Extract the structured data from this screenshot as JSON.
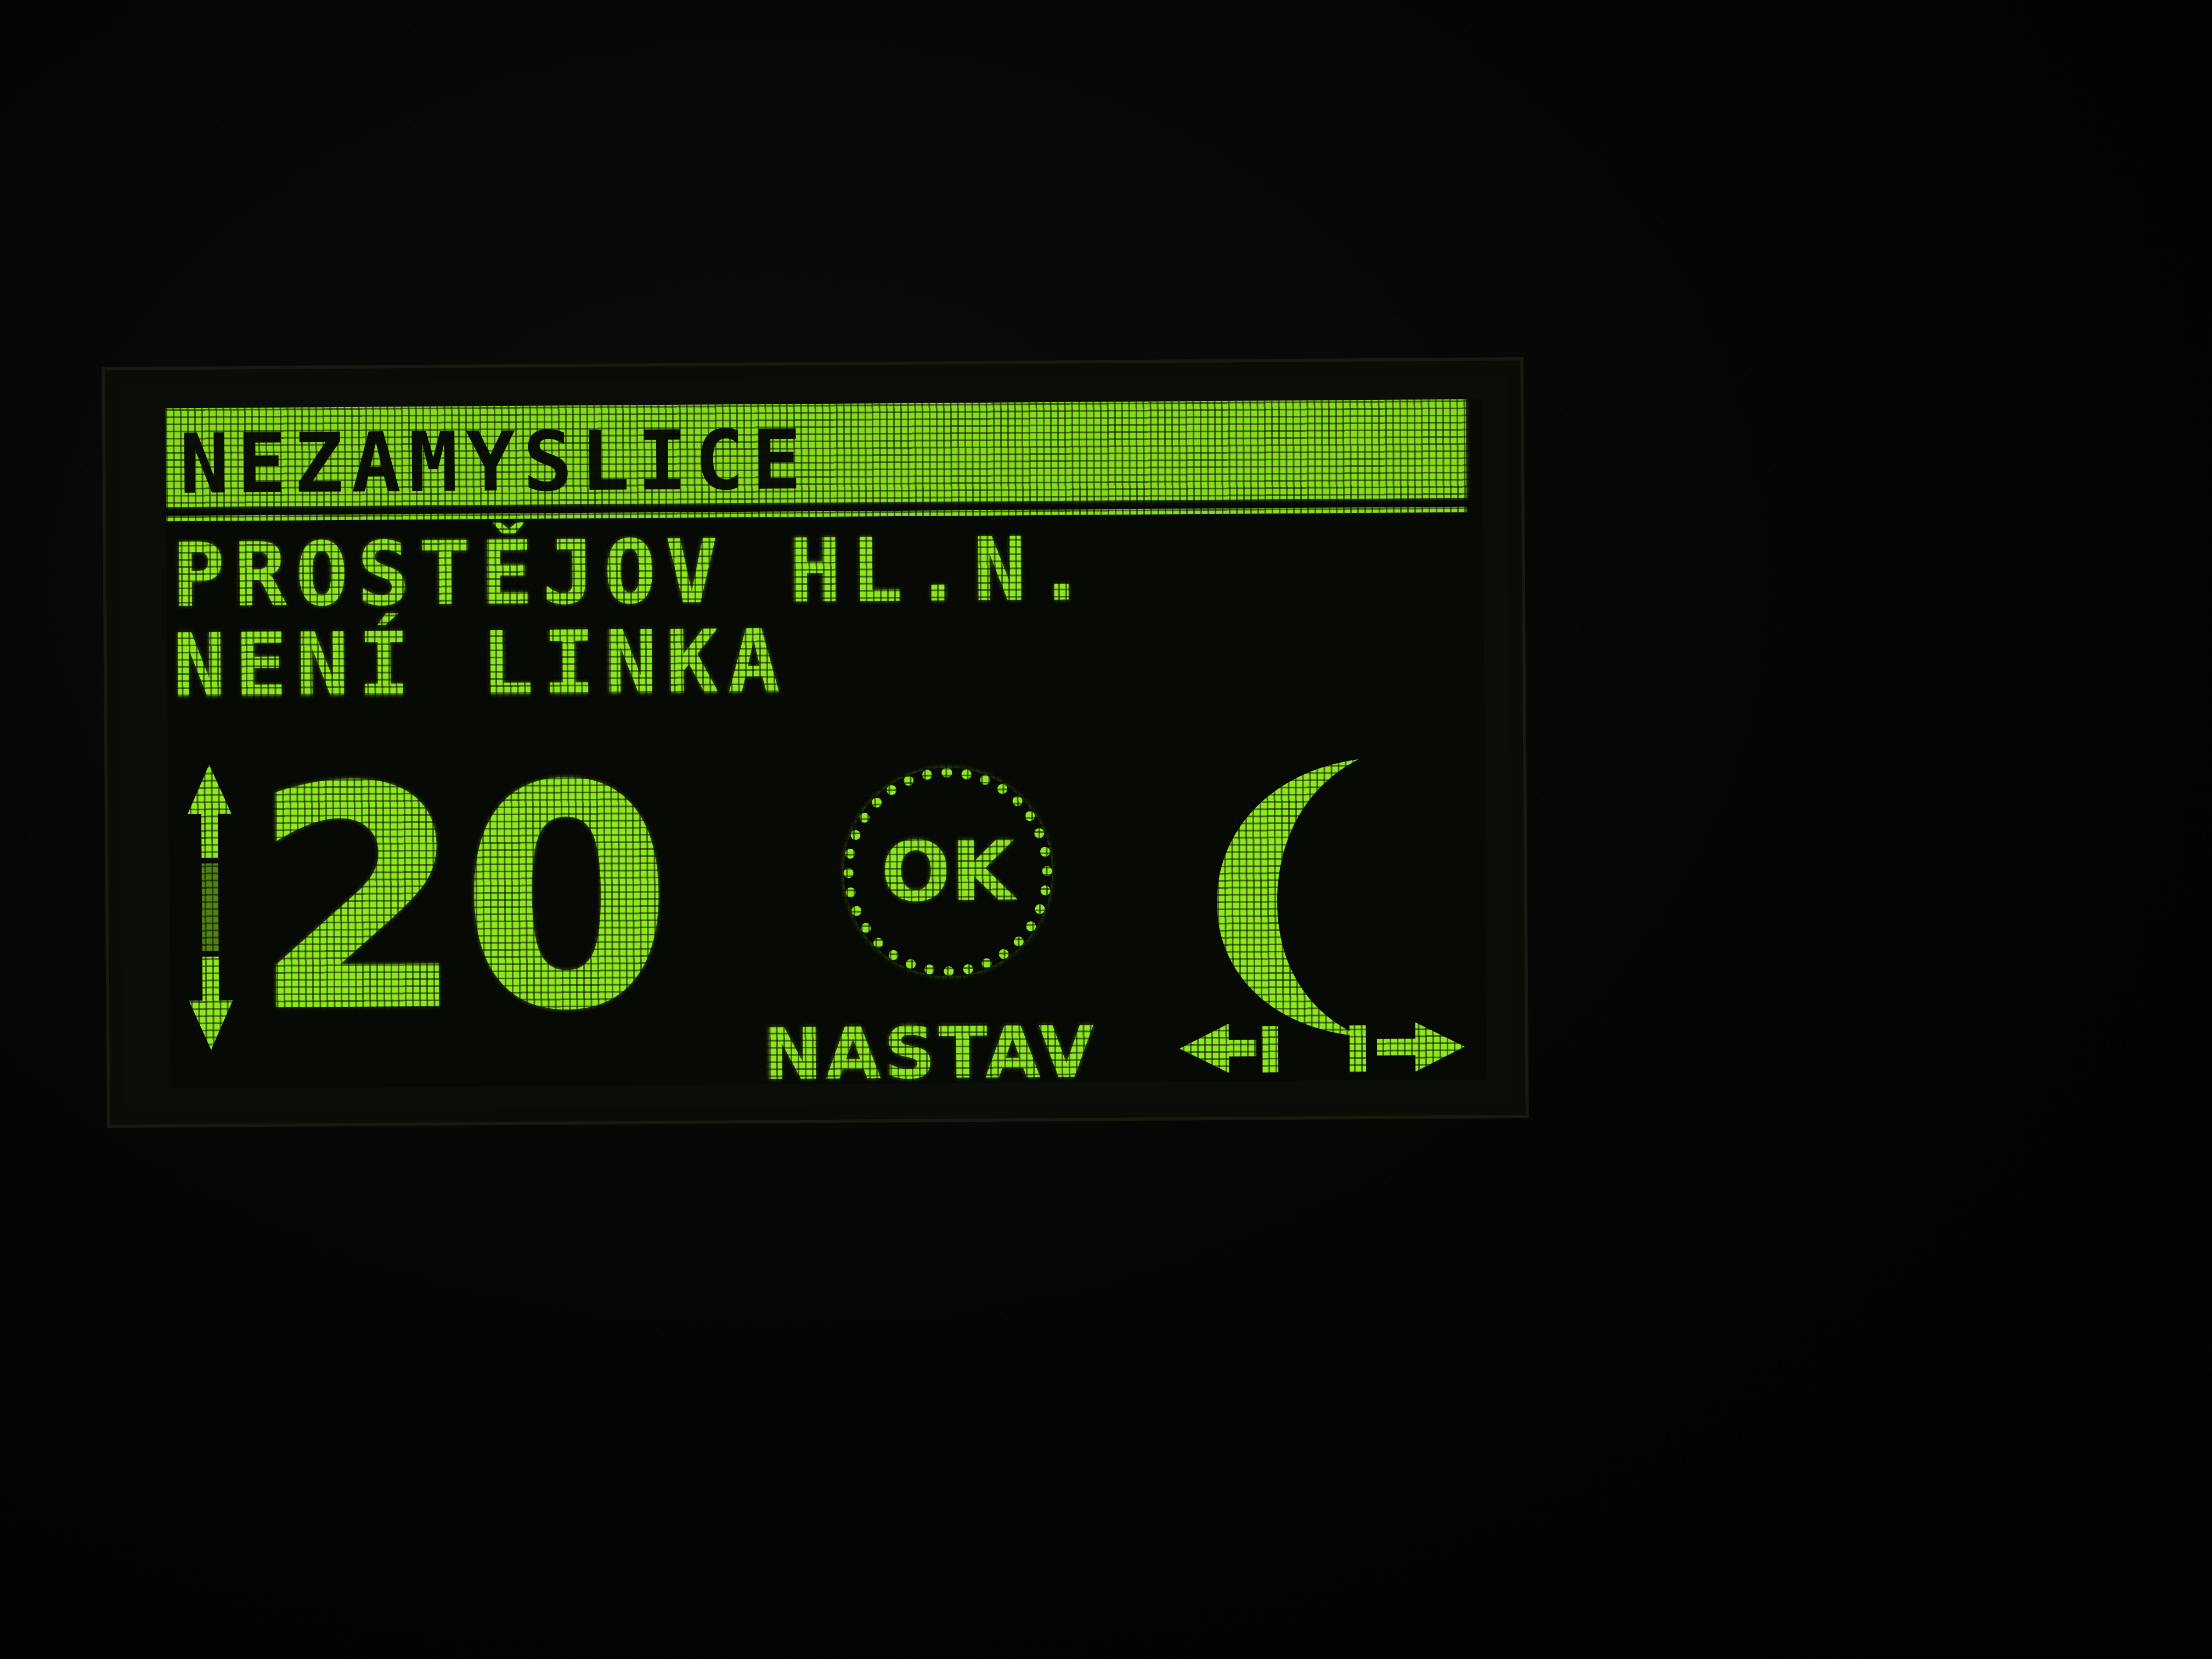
{
  "display": {
    "header": "NEZAMYSLICE",
    "line2": "PROSTĚJOV HL.N.",
    "line3": "NENÍ LINKA",
    "big_number": "20",
    "ok_label": "OK",
    "nastav_label": "NASTAV"
  },
  "icons": {
    "updown": "up-down-arrow-icon",
    "moon": "crescent-moon-icon",
    "left": "left-arrow-icon",
    "right": "right-arrow-icon"
  },
  "colors": {
    "lcd_green": "#8ee81f",
    "lcd_background": "#070905",
    "surround": "#050505"
  }
}
